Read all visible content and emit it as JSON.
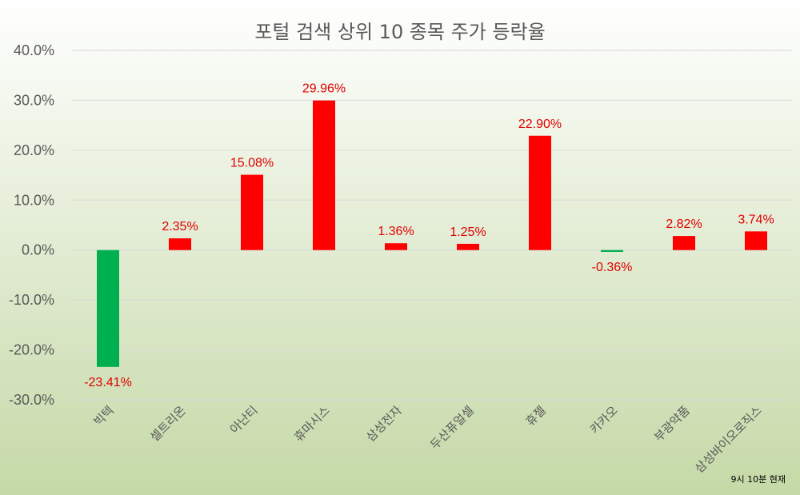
{
  "chart_data": {
    "type": "bar",
    "title": "포털 검색 상위 10 종목 주가 등락율",
    "categories": [
      "빅텍",
      "셀트리온",
      "아난티",
      "휴마시스",
      "삼성전자",
      "두산퓨얼셀",
      "휴젤",
      "카카오",
      "부광약품",
      "삼성바이오로직스"
    ],
    "values": [
      -23.41,
      2.35,
      15.08,
      29.96,
      1.36,
      1.25,
      22.9,
      -0.36,
      2.82,
      3.74
    ],
    "data_labels": [
      "-23.41%",
      "2.35%",
      "15.08%",
      "29.96%",
      "1.36%",
      "1.25%",
      "22.90%",
      "-0.36%",
      "2.82%",
      "3.74%"
    ],
    "ylim": [
      -30,
      40
    ],
    "yticks": [
      40,
      30,
      20,
      10,
      0,
      -10,
      -20,
      -30
    ],
    "ytick_labels": [
      "40.0%",
      "30.0%",
      "20.0%",
      "10.0%",
      "0.0%",
      "-10.0%",
      "-20.0%",
      "-30.0%"
    ],
    "xlabel": "",
    "ylabel": "",
    "grid": true,
    "legend": "none",
    "colors": {
      "positive": "#ff0000",
      "negative": "#00b050",
      "label": "#e00000",
      "grid": "#d9d9d9",
      "text": "#595959",
      "bg_top": "#ffffff",
      "bg_bottom": "#c5d9a7"
    }
  },
  "footnote": "9시  10분 현재"
}
